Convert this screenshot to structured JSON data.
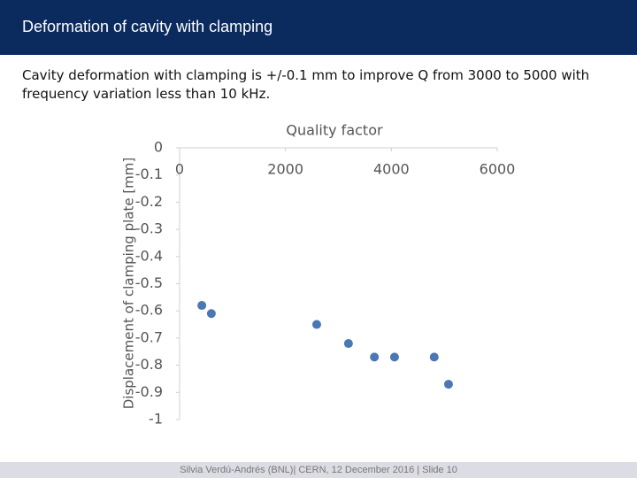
{
  "header": {
    "title": "Deformation of cavity with clamping"
  },
  "text": {
    "lines": [
      "Cavity deformation with clamping is +/-0.1 mm to improve Q from 3000 to 5000 with",
      "frequency variation less than 10 kHz."
    ]
  },
  "footer": {
    "text": "Silvia Verdú-Andrés (BNL)| CERN, 12 December 2016 | Slide 10"
  },
  "chart_data": {
    "type": "scatter",
    "xlabel": "Quality factor",
    "ylabel": "Displacement of clamping plate [mm]",
    "x": [
      420,
      600,
      2590,
      3190,
      3680,
      4060,
      4810,
      5080
    ],
    "values": [
      -0.58,
      -0.61,
      -0.65,
      -0.72,
      -0.77,
      -0.77,
      -0.77,
      -0.87
    ],
    "color": "#4a78b4",
    "xlim": [
      0,
      6000
    ],
    "xticks": [
      0,
      2000,
      4000,
      6000
    ],
    "ylim": [
      -1,
      0
    ],
    "yticks": [
      0,
      -0.1,
      -0.2,
      -0.3,
      -0.4,
      -0.5,
      -0.6,
      -0.7,
      -0.8,
      -0.9,
      -1
    ],
    "grid": false
  }
}
